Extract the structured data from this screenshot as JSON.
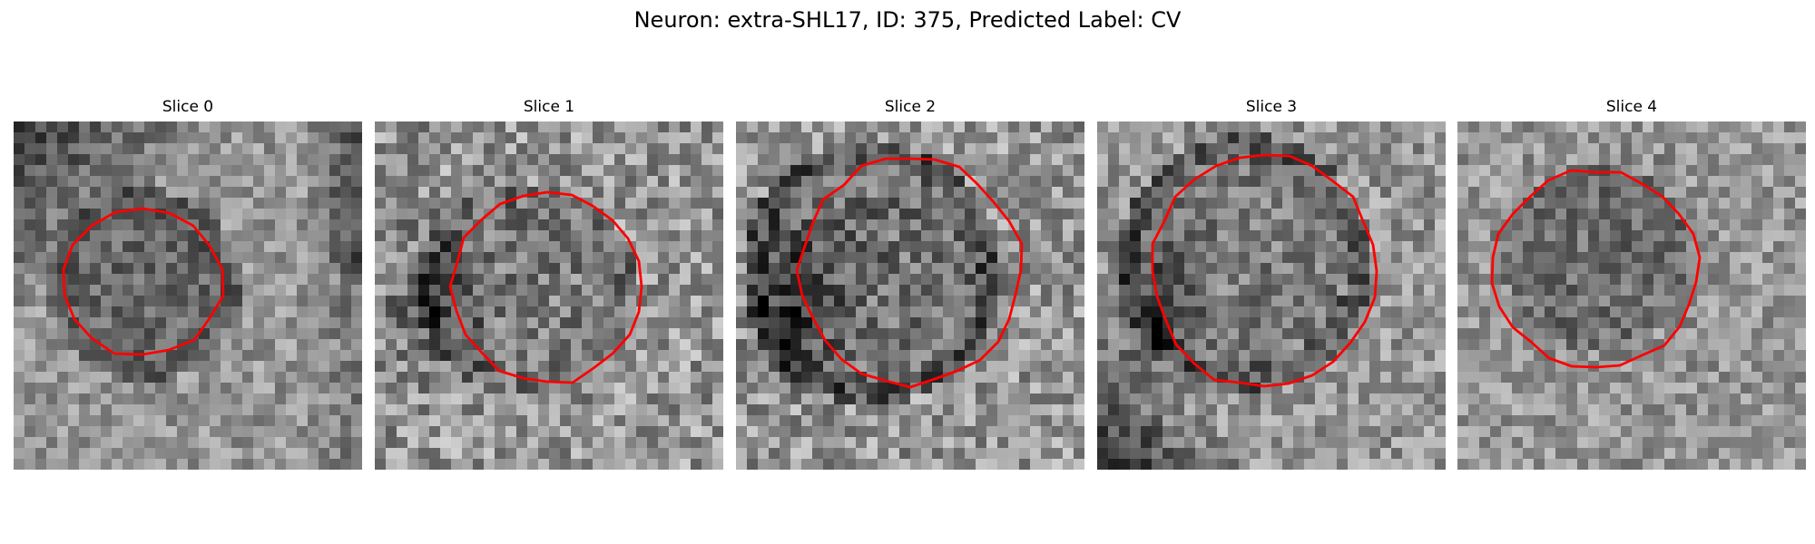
{
  "figure": {
    "suptitle": "Neuron: extra-SHL17, ID: 375, Predicted Label: CV"
  },
  "panels": [
    {
      "title": "Slice 0"
    },
    {
      "title": "Slice 1"
    },
    {
      "title": "Slice 2"
    },
    {
      "title": "Slice 3"
    },
    {
      "title": "Slice 4"
    }
  ],
  "colors": {
    "contour": "#ff0000",
    "background": "#ffffff"
  },
  "image_style": "grayscale noisy microscopy patch with red polygon outline"
}
